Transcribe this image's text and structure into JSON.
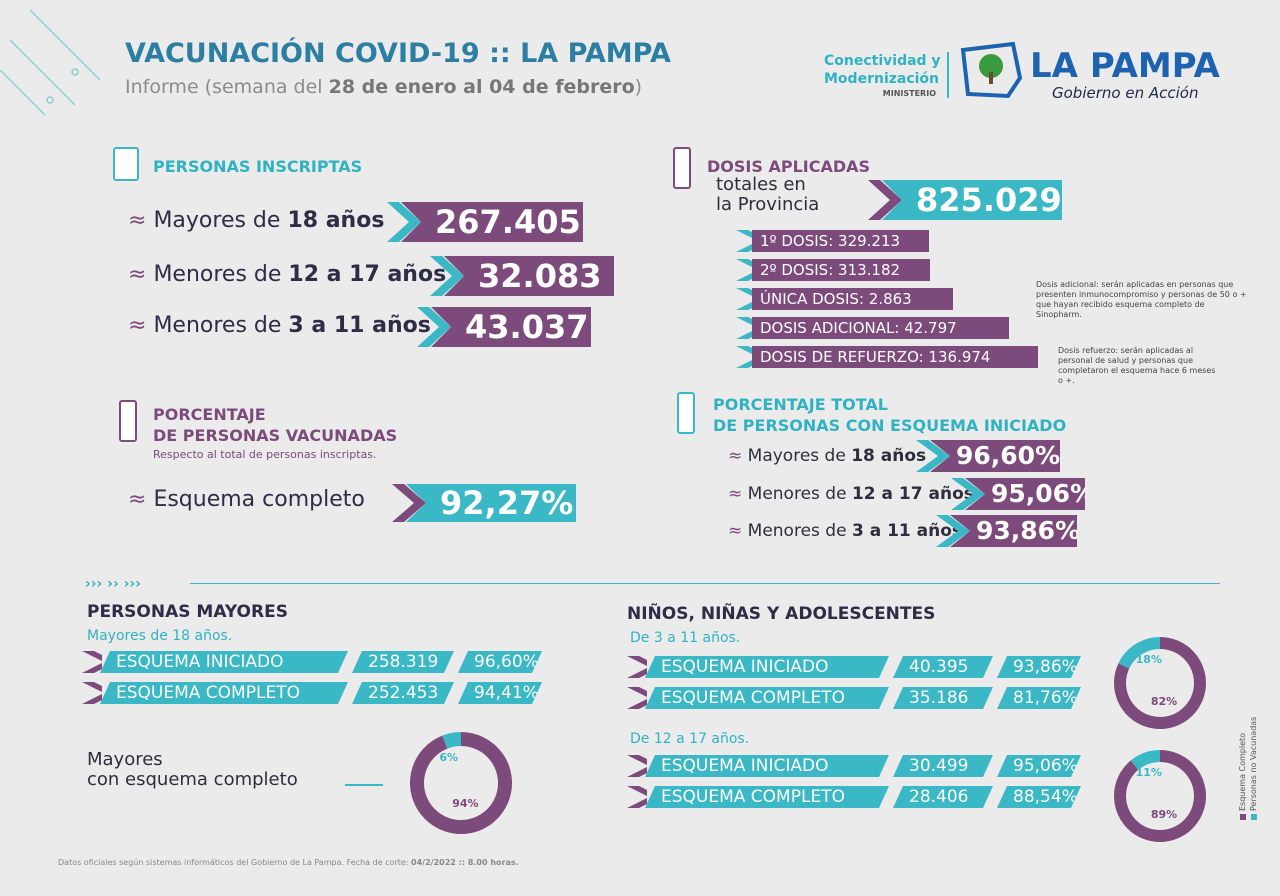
{
  "header": {
    "title": "VACUNACIÓN COVID-19 :: LA PAMPA",
    "subtitle_pre": "Informe (semana del ",
    "subtitle_bold": "28 de enero al 04 de febrero",
    "subtitle_post": ")"
  },
  "logo": {
    "ministry_line1": "Conectividad y",
    "ministry_line2": "Modernización",
    "ministry_line3": "MINISTERIO",
    "brand": "LA PAMPA",
    "tagline": "Gobierno en Acción"
  },
  "inscriptas": {
    "title": "PERSONAS INSCRIPTAS",
    "rows": [
      {
        "label": "Mayores de ",
        "bold": "18 años",
        "value": "267.405"
      },
      {
        "label": "Menores de ",
        "bold": "12 a 17 años",
        "value": "32.083"
      },
      {
        "label": "Menores de ",
        "bold": "3 a 11 años",
        "value": "43.037"
      }
    ]
  },
  "dosis": {
    "title": "DOSIS APLICADAS",
    "subtitle_line1": "totales en",
    "subtitle_line2": "la Provincia",
    "total": "825.029",
    "items": [
      "1º DOSIS: 329.213",
      "2º DOSIS: 313.182",
      "ÚNICA DOSIS: 2.863",
      "DOSIS ADICIONAL: 42.797",
      "DOSIS DE REFUERZO: 136.974"
    ],
    "notes": [
      "Dosis adicional: serán aplicadas en personas que presenten inmunocompromiso y personas de 50 o + que hayan recibido esquema completo de Sinopharm.",
      "Dosis refuerzo: serán aplicadas al personal de salud y personas que completaron el esquema hace 6 meses o +."
    ]
  },
  "porcentaje": {
    "title_line1": "PORCENTAJE",
    "title_line2": "DE PERSONAS VACUNADAS",
    "note": "Respecto al total de personas inscriptas.",
    "label": "Esquema completo",
    "value": "92,27%"
  },
  "porcentaje_total": {
    "title_line1": "PORCENTAJE TOTAL",
    "title_line2": "DE PERSONAS CON ESQUEMA INICIADO",
    "rows": [
      {
        "label": "Mayores de ",
        "bold": "18 años",
        "value": "96,60%"
      },
      {
        "label": "Menores de ",
        "bold": "12 a 17 años",
        "value": "95,06%"
      },
      {
        "label": "Menores de ",
        "bold": "3 a 11 años",
        "value": "93,86%"
      }
    ]
  },
  "section_marker": "››› ›› ›››",
  "mayores": {
    "title": "PERSONAS MAYORES",
    "subtitle": "Mayores de 18 años.",
    "rows": [
      {
        "label": "ESQUEMA INICIADO",
        "count": "258.319",
        "pct": "96,60%"
      },
      {
        "label": "ESQUEMA COMPLETO",
        "count": "252.453",
        "pct": "94,41%"
      }
    ],
    "donut_label_line1": "Mayores",
    "donut_label_line2": "con esquema completo",
    "donut": {
      "values": [
        6,
        94
      ],
      "value_labels": [
        "6%",
        "94%"
      ]
    }
  },
  "ninos": {
    "title": "NIÑOS, NIÑAS Y ADOLESCENTES",
    "groups": [
      {
        "subtitle": "De 3 a 11 años.",
        "rows": [
          {
            "label": "ESQUEMA INICIADO",
            "count": "40.395",
            "pct": "93,86%"
          },
          {
            "label": "ESQUEMA COMPLETO",
            "count": "35.186",
            "pct": "81,76%"
          }
        ],
        "donut": {
          "values": [
            18,
            82
          ],
          "value_labels": [
            "18%",
            "82%"
          ]
        }
      },
      {
        "subtitle": "De 12 a 17 años.",
        "rows": [
          {
            "label": "ESQUEMA INICIADO",
            "count": "30.499",
            "pct": "95,06%"
          },
          {
            "label": "ESQUEMA COMPLETO",
            "count": "28.406",
            "pct": "88,54%"
          }
        ],
        "donut": {
          "values": [
            11,
            89
          ],
          "value_labels": [
            "11%",
            "89%"
          ]
        }
      }
    ]
  },
  "legend": [
    {
      "name": "Esquema Completo",
      "color": "#7d4a7c"
    },
    {
      "name": "Personas no Vacunadas",
      "color": "#3bb8c6"
    }
  ],
  "footer": {
    "pre": "Datos oficiales según sistemas informáticos del Gobierno de La Pampa. Fecha de corte: ",
    "bold": "04/2/2022 :: 8.00 horas."
  }
}
